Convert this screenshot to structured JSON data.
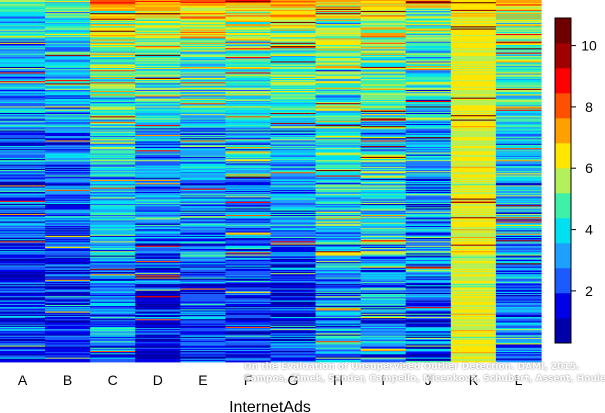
{
  "chart_data": {
    "type": "heatmap",
    "title": "",
    "xlabel": "InternetAds",
    "ylabel": "",
    "categories": [
      "A",
      "B",
      "C",
      "D",
      "E",
      "F",
      "G",
      "H",
      "I",
      "J",
      "K",
      "L"
    ],
    "value_range": [
      0.3,
      10.9
    ],
    "colorbar": {
      "ticks": [
        2,
        4,
        6,
        8,
        10
      ],
      "colors": [
        "#0000AA",
        "#0000E6",
        "#1A5AFF",
        "#1EA0FF",
        "#00E0F0",
        "#3EF0A8",
        "#B4F05A",
        "#FFE600",
        "#FFA000",
        "#FF5000",
        "#FF0000",
        "#A00000",
        "#6E0000"
      ]
    },
    "rows": 330,
    "column_profiles": [
      {
        "column": "A",
        "top_mean": 5.0,
        "bottom_mean": 1.5,
        "spread": 1.6
      },
      {
        "column": "B",
        "top_mean": 5.2,
        "bottom_mean": 1.6,
        "spread": 1.6
      },
      {
        "column": "C",
        "top_mean": 7.5,
        "bottom_mean": 2.6,
        "spread": 1.7
      },
      {
        "column": "D",
        "top_mean": 8.0,
        "bottom_mean": 1.2,
        "spread": 1.5
      },
      {
        "column": "E",
        "top_mean": 7.5,
        "bottom_mean": 1.7,
        "spread": 1.6
      },
      {
        "column": "F",
        "top_mean": 7.5,
        "bottom_mean": 1.7,
        "spread": 1.6
      },
      {
        "column": "G",
        "top_mean": 8.0,
        "bottom_mean": 1.5,
        "spread": 1.6
      },
      {
        "column": "H",
        "top_mean": 7.0,
        "bottom_mean": 3.0,
        "spread": 1.9
      },
      {
        "column": "I",
        "top_mean": 7.0,
        "bottom_mean": 2.8,
        "spread": 1.9
      },
      {
        "column": "J",
        "top_mean": 6.5,
        "bottom_mean": 2.0,
        "spread": 2.0
      },
      {
        "column": "K",
        "top_mean": 6.2,
        "bottom_mean": 6.0,
        "spread": 0.6
      },
      {
        "column": "L",
        "top_mean": 7.0,
        "bottom_mean": 2.5,
        "spread": 1.6
      }
    ]
  },
  "credit": {
    "line1": "On the Evaluation of Unsupervised Outlier Detection. DAMI, 2015.",
    "line2": "Campos, Zimek, Sander, Campello, Micenková, Schubert, Assent, Houle"
  }
}
